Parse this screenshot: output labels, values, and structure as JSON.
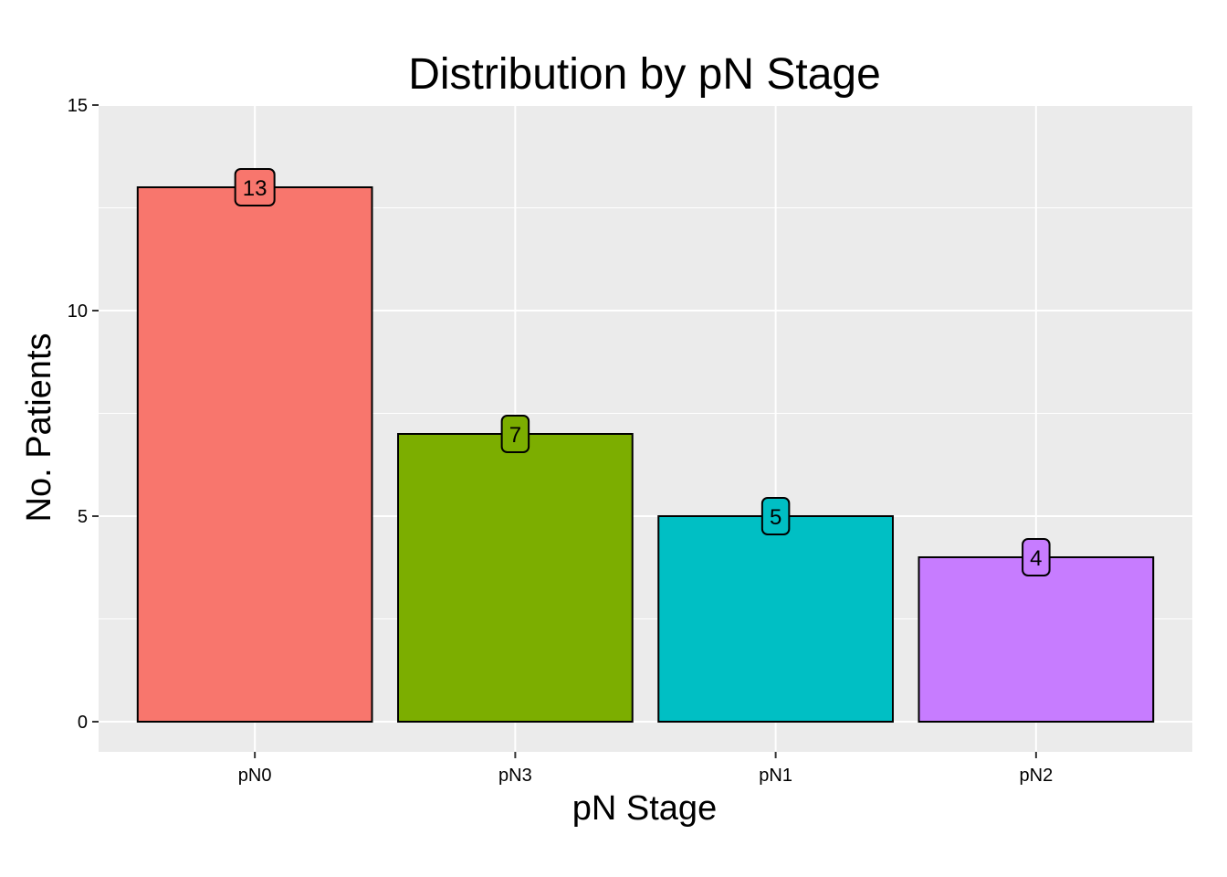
{
  "chart_data": {
    "type": "bar",
    "title": "Distribution by pN Stage",
    "xlabel": "pN Stage",
    "ylabel": "No. Patients",
    "categories": [
      "pN0",
      "pN3",
      "pN1",
      "pN2"
    ],
    "values": [
      13,
      7,
      5,
      4
    ],
    "data_labels": [
      "13",
      "7",
      "5",
      "4"
    ],
    "colors": [
      "#F8766D",
      "#7CAE00",
      "#00BFC4",
      "#C77CFF"
    ],
    "ylim": [
      0,
      15
    ],
    "y_ticks": [
      0,
      5,
      10,
      15
    ],
    "grid": true,
    "legend": "none",
    "panel_background": "#EBEBEB",
    "gridline_color": "#FFFFFF"
  }
}
